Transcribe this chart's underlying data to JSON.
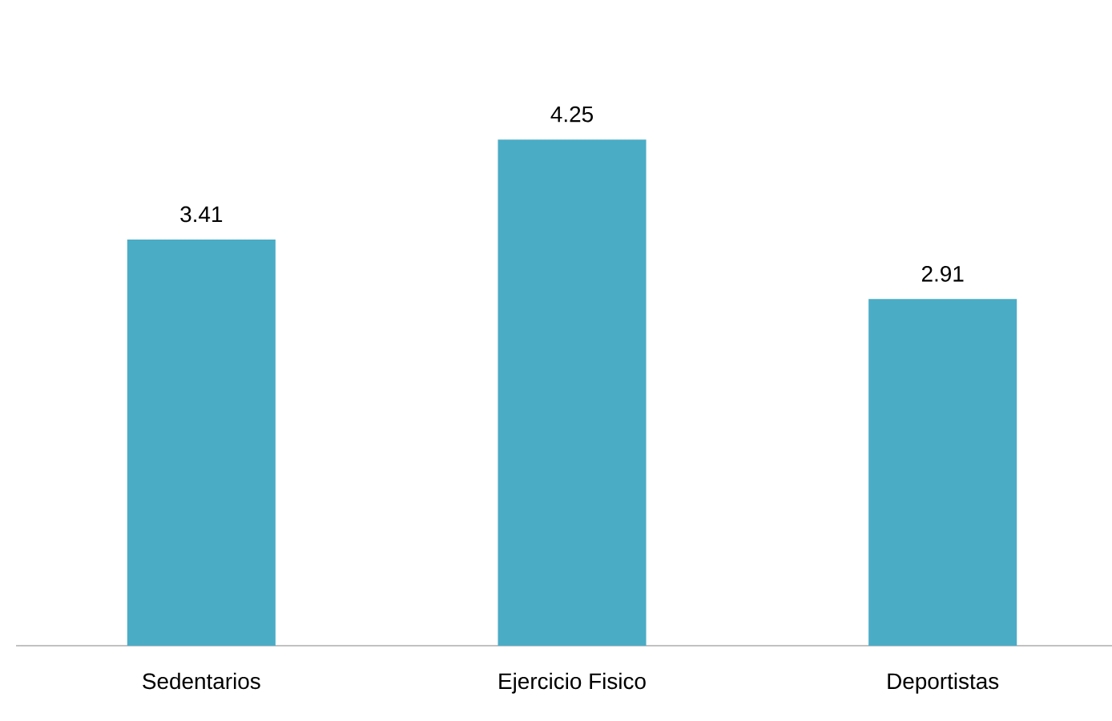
{
  "chart_data": {
    "type": "bar",
    "categories": [
      "Sedentarios",
      "Ejercicio Fisico",
      "Deportistas"
    ],
    "values": [
      3.41,
      4.25,
      2.91
    ],
    "color": "#4bacc6",
    "data_labels": true,
    "grid": false,
    "tick_labels": "x"
  }
}
